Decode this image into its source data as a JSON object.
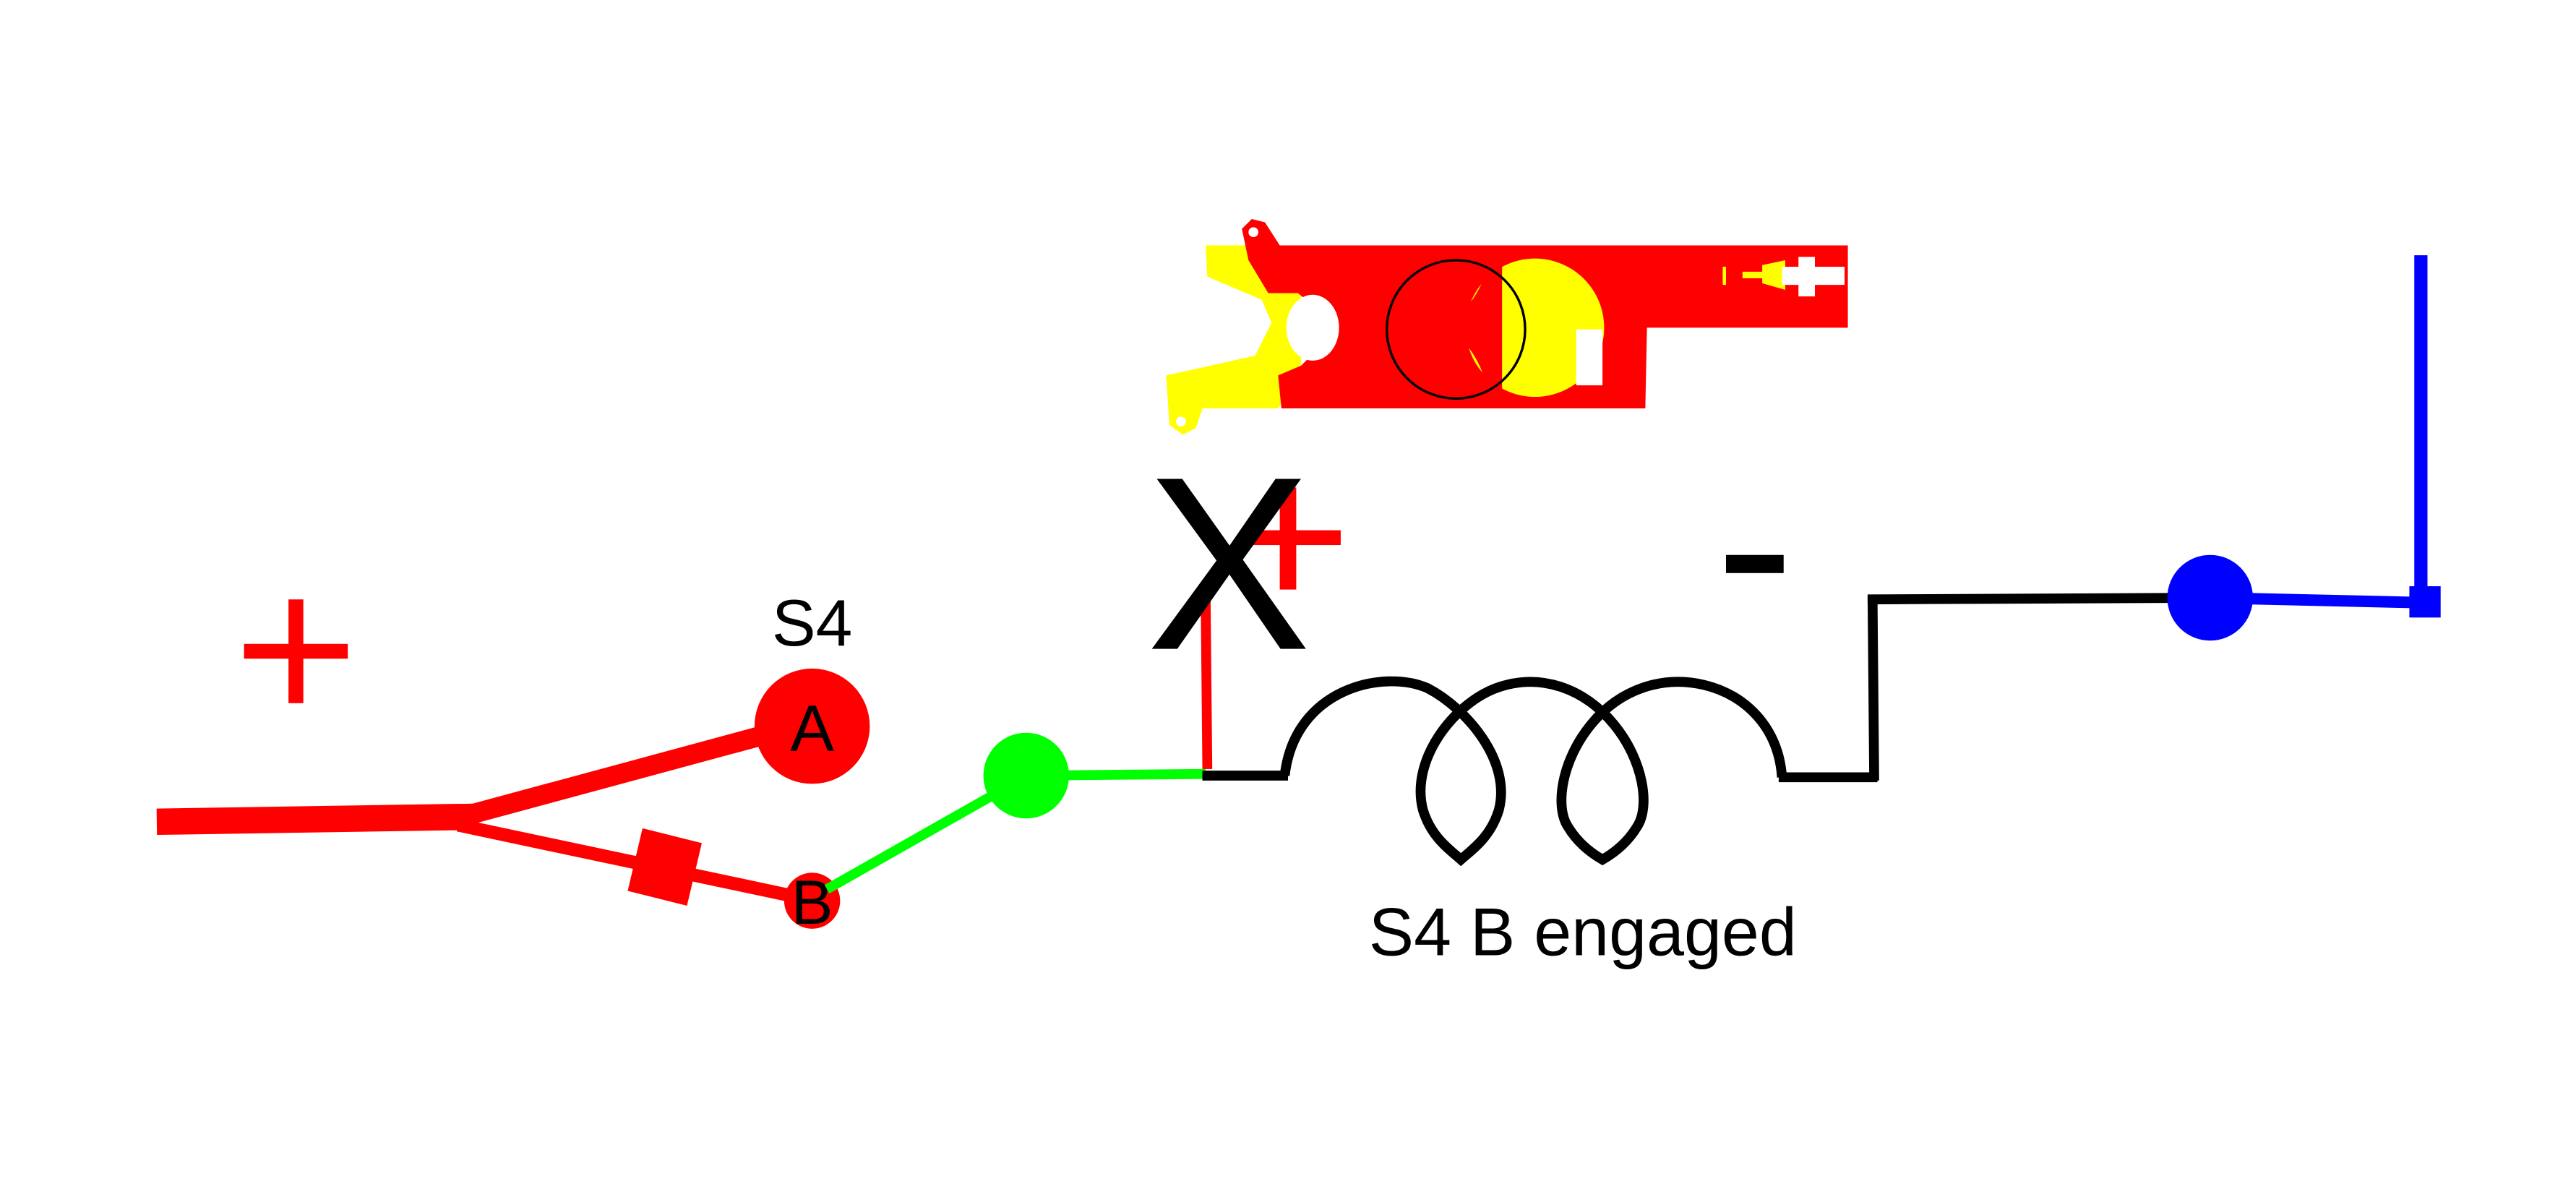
{
  "labels": {
    "switch_name": "S4",
    "contact_a": "A",
    "contact_b": "B",
    "status": "S4 B engaged",
    "cross_mark": "X",
    "plus_left": "+",
    "plus_coil": "+",
    "minus_coil": "-"
  },
  "colors": {
    "positive_wire": "#ff0000",
    "contact_wire": "#00ff00",
    "coil_wire": "#000000",
    "ground_wire": "#0000ff",
    "actuator_body": "#ff0000",
    "actuator_highlight": "#ffff00",
    "background": "#ffffff"
  },
  "state": {
    "engaged_contact": "B",
    "coil_supply_broken": true
  }
}
